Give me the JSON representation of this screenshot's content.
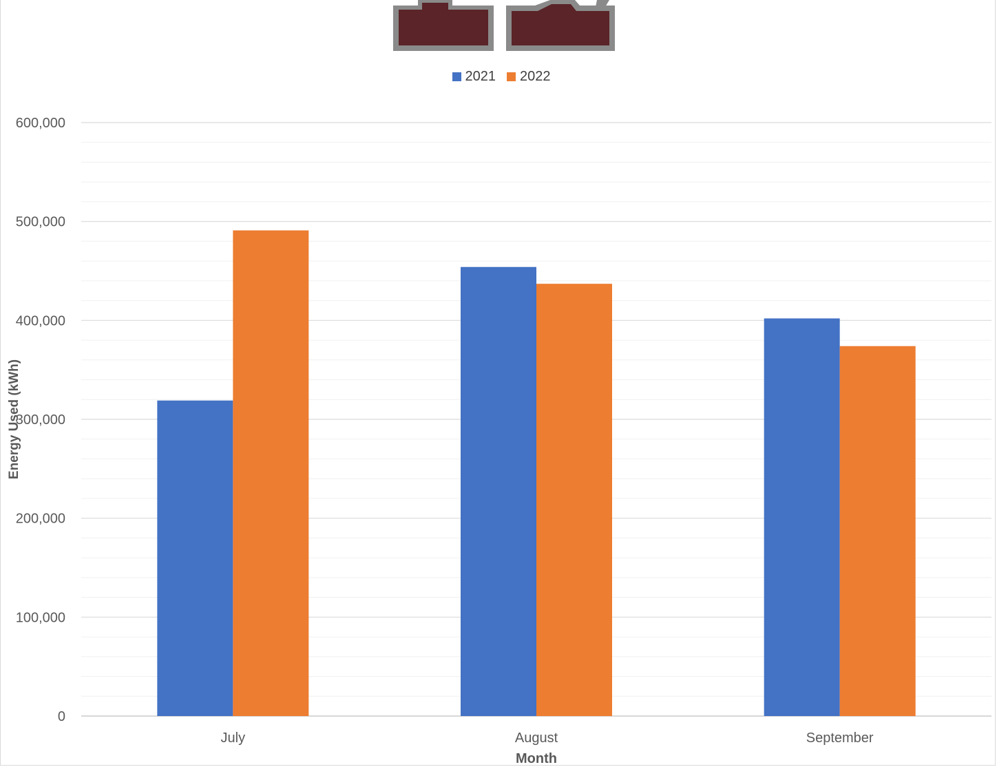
{
  "chart_data": {
    "type": "bar",
    "title": "",
    "xlabel": "Month",
    "ylabel": "Energy Used (kWh)",
    "ylim": [
      0,
      600000
    ],
    "ytick_step": 100000,
    "ytick_labels": [
      "0",
      "100,000",
      "200,000",
      "300,000",
      "400,000",
      "500,000",
      "600,000"
    ],
    "grid": true,
    "legend_position": "top",
    "categories": [
      "July",
      "August",
      "September"
    ],
    "series": [
      {
        "name": "2021",
        "color": "#4472C4",
        "values": [
          319000,
          454000,
          402000
        ]
      },
      {
        "name": "2022",
        "color": "#ED7D31",
        "values": [
          491000,
          437000,
          374000
        ]
      }
    ]
  },
  "logo": {
    "colors": {
      "fill": "#5a2428",
      "outline": "#8a8a8a"
    }
  }
}
